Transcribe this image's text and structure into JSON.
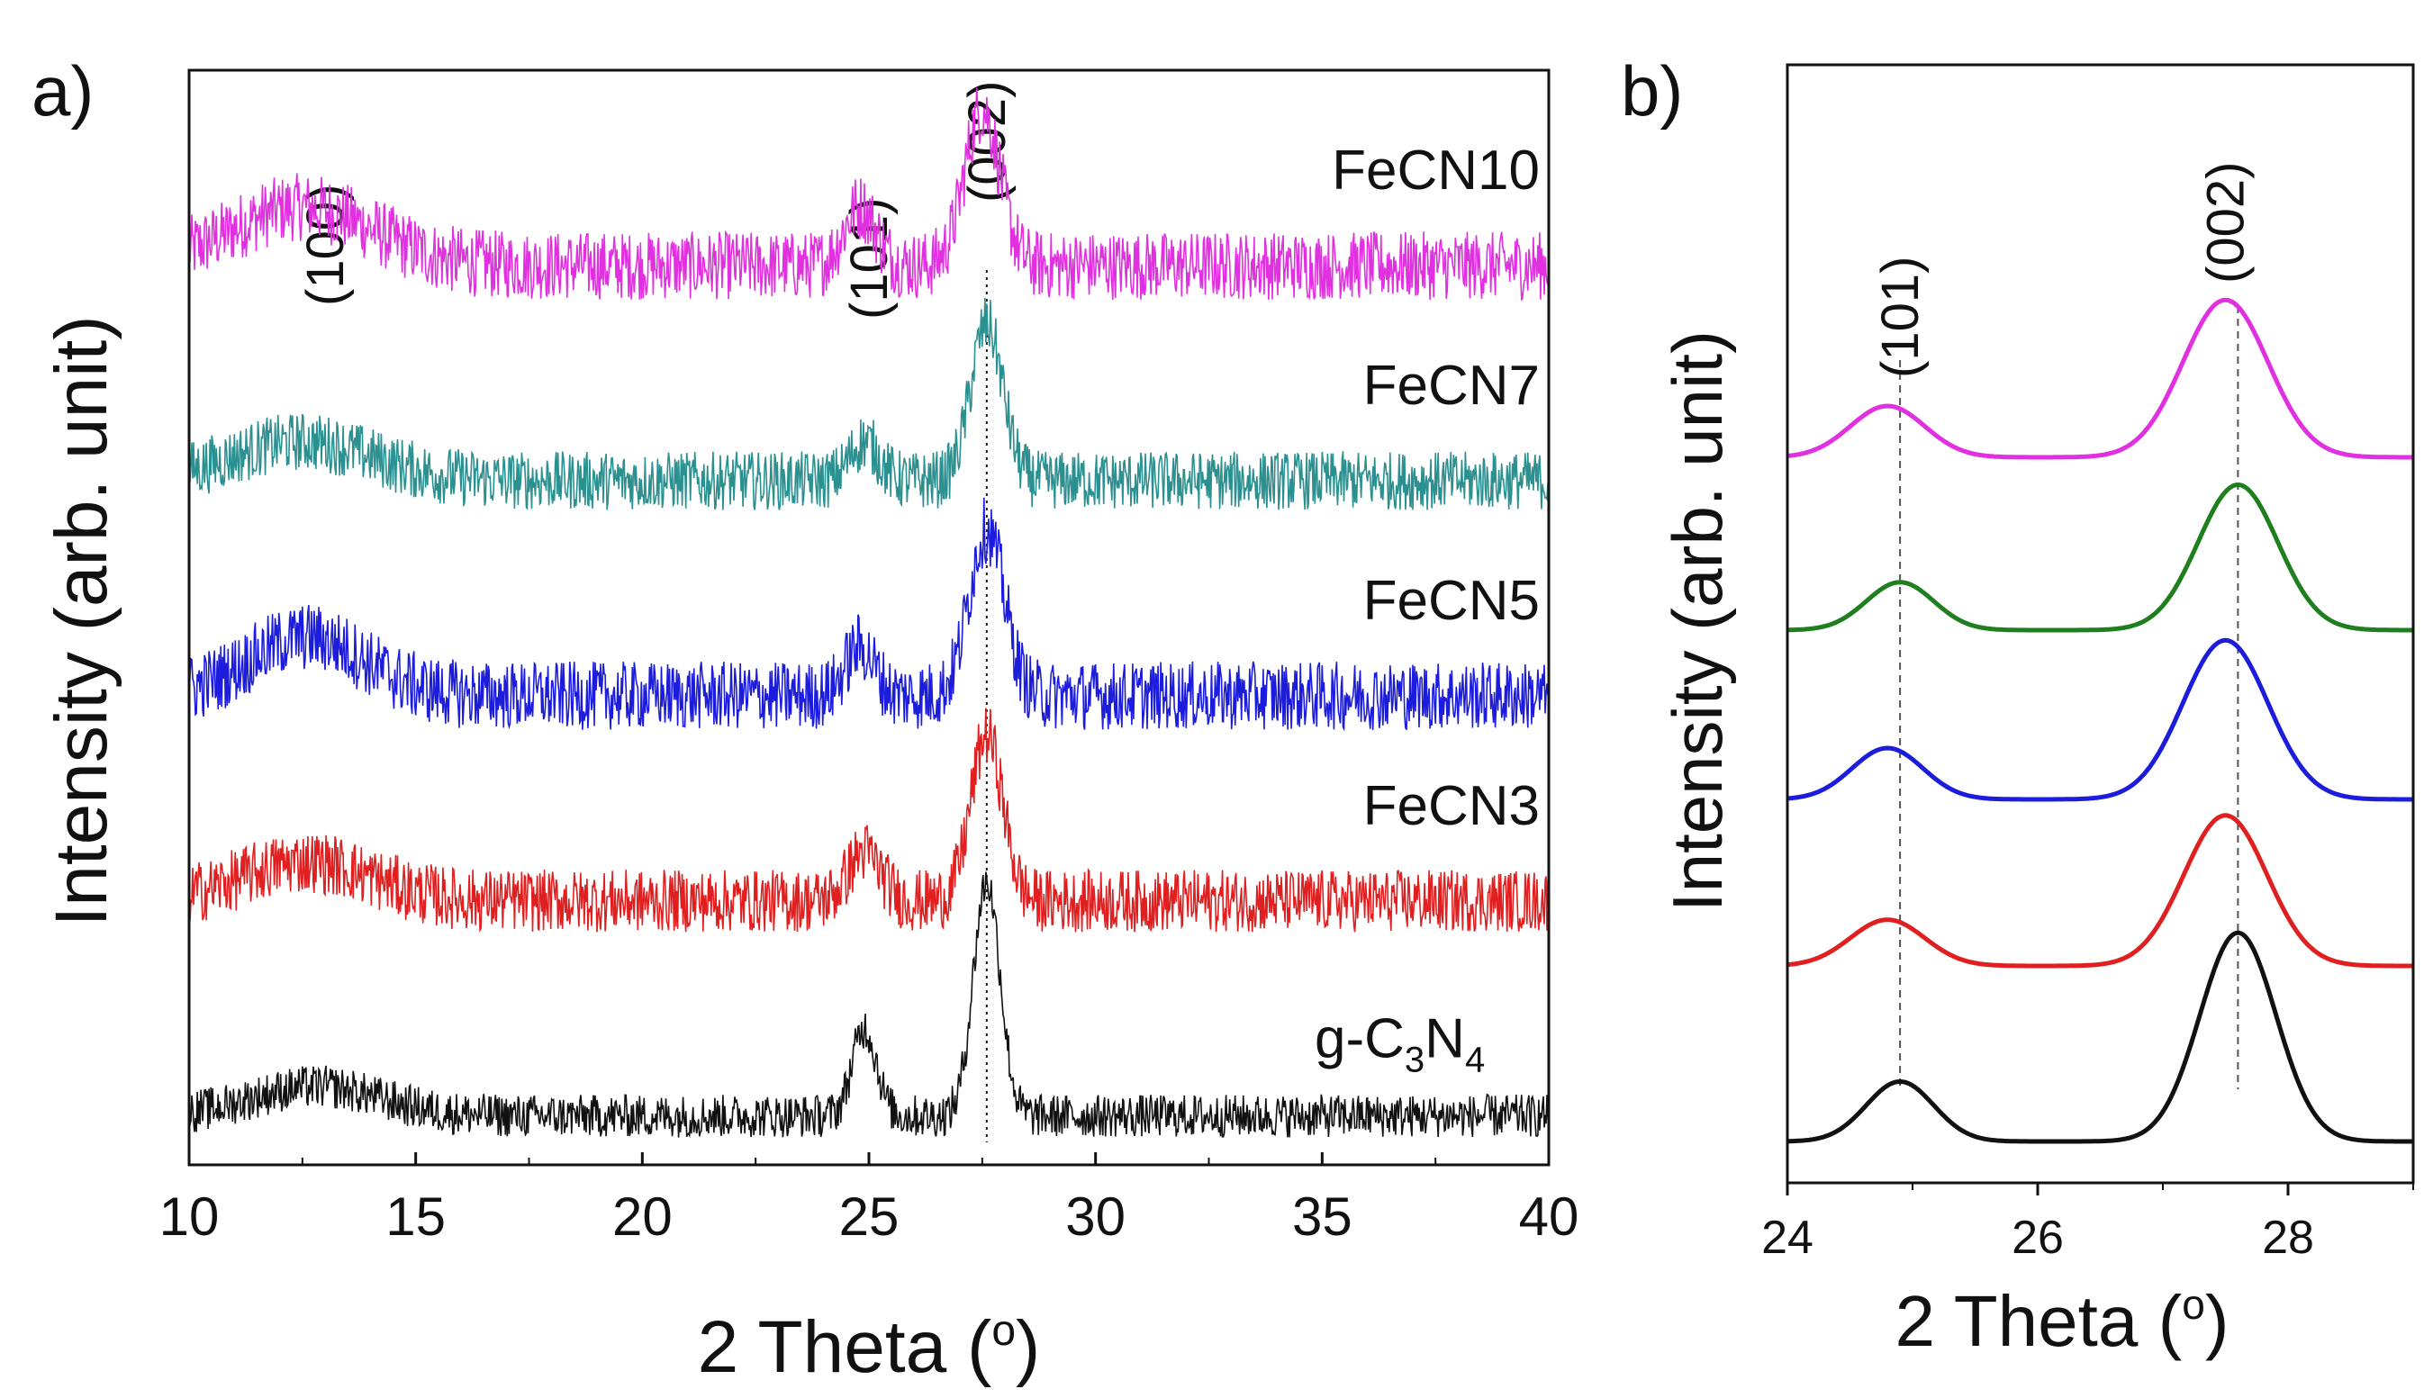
{
  "chart_data": [
    {
      "panel_label": "a)",
      "type": "line",
      "xlabel": "2 Theta (",
      "xlabel_sup": "o",
      "xlabel_close": ")",
      "ylabel": "Intensity (arb. unit)",
      "xlim": [
        10,
        40
      ],
      "xticks": [
        "10",
        "15",
        "20",
        "25",
        "30",
        "35",
        "40"
      ],
      "grid": false,
      "reference_line_x": 27.6,
      "peak_annotations": [
        {
          "label": "(100)",
          "x": 13.0
        },
        {
          "label": "(101)",
          "x": 25.0
        },
        {
          "label": "(002)",
          "x": 27.6
        }
      ],
      "series": [
        {
          "name": "FeCN10",
          "color": "#e030e0",
          "baseline": 0.8,
          "noise": 0.035,
          "peaks": [
            {
              "x": 12.5,
              "h": 0.06,
              "w": 2.2
            },
            {
              "x": 24.8,
              "h": 0.06,
              "w": 0.5
            },
            {
              "x": 27.5,
              "h": 0.16,
              "w": 0.55
            }
          ]
        },
        {
          "name": "FeCN7",
          "color": "#2a9090",
          "baseline": 0.58,
          "noise": 0.03,
          "peaks": [
            {
              "x": 12.5,
              "h": 0.04,
              "w": 2.2
            },
            {
              "x": 24.9,
              "h": 0.04,
              "w": 0.45
            },
            {
              "x": 27.6,
              "h": 0.16,
              "w": 0.5
            }
          ]
        },
        {
          "name": "FeCN5",
          "color": "#1c1cdd",
          "baseline": 0.36,
          "noise": 0.035,
          "peaks": [
            {
              "x": 12.6,
              "h": 0.06,
              "w": 1.8
            },
            {
              "x": 24.8,
              "h": 0.05,
              "w": 0.45
            },
            {
              "x": 27.6,
              "h": 0.17,
              "w": 0.55
            }
          ]
        },
        {
          "name": "FeCN3",
          "color": "#e02020",
          "baseline": 0.15,
          "noise": 0.032,
          "peaks": [
            {
              "x": 12.6,
              "h": 0.04,
              "w": 2.0
            },
            {
              "x": 24.9,
              "h": 0.05,
              "w": 0.5
            },
            {
              "x": 27.6,
              "h": 0.17,
              "w": 0.5
            }
          ]
        },
        {
          "name": "g-C3N4",
          "label_main": "g-C",
          "label_sub1": "3",
          "label_mid": "N",
          "label_sub2": "4",
          "color": "#111111",
          "baseline": -0.07,
          "noise": 0.022,
          "peaks": [
            {
              "x": 12.8,
              "h": 0.03,
              "w": 2.0
            },
            {
              "x": 24.9,
              "h": 0.09,
              "w": 0.38
            },
            {
              "x": 27.6,
              "h": 0.24,
              "w": 0.42
            }
          ]
        }
      ]
    },
    {
      "panel_label": "b)",
      "type": "line",
      "xlabel": "2 Theta (",
      "xlabel_sup": "o",
      "xlabel_close": ")",
      "ylabel": "Intensity (arb. unit)",
      "xlim": [
        24,
        29
      ],
      "xticks": [
        "24",
        "26",
        "28"
      ],
      "xtick_values": [
        24,
        26,
        28
      ],
      "grid": false,
      "reference_lines_x": [
        24.9,
        27.6
      ],
      "peak_annotations": [
        {
          "label": "(101)",
          "x": 24.9
        },
        {
          "label": "(002)",
          "x": 27.5
        }
      ],
      "series": [
        {
          "name": "FeCN10",
          "color": "#e030e0",
          "baseline": 4,
          "peaks": [
            {
              "x": 24.8,
              "h": 0.3,
              "w": 0.42
            },
            {
              "x": 27.5,
              "h": 0.92,
              "w": 0.48
            }
          ]
        },
        {
          "name": "FeCN7",
          "color": "#1f7f1f",
          "baseline": 3,
          "peaks": [
            {
              "x": 24.9,
              "h": 0.28,
              "w": 0.38
            },
            {
              "x": 27.6,
              "h": 0.85,
              "w": 0.45
            }
          ]
        },
        {
          "name": "FeCN5",
          "color": "#1c1cdd",
          "baseline": 2,
          "peaks": [
            {
              "x": 24.8,
              "h": 0.3,
              "w": 0.4
            },
            {
              "x": 27.5,
              "h": 0.93,
              "w": 0.48
            }
          ]
        },
        {
          "name": "FeCN3",
          "color": "#e02020",
          "baseline": 1,
          "peaks": [
            {
              "x": 24.8,
              "h": 0.27,
              "w": 0.42
            },
            {
              "x": 27.5,
              "h": 0.88,
              "w": 0.47
            }
          ]
        },
        {
          "name": "g-C3N4",
          "color": "#111111",
          "baseline": 0,
          "peaks": [
            {
              "x": 24.9,
              "h": 0.35,
              "w": 0.38
            },
            {
              "x": 27.6,
              "h": 1.22,
              "w": 0.43
            }
          ]
        }
      ]
    }
  ]
}
